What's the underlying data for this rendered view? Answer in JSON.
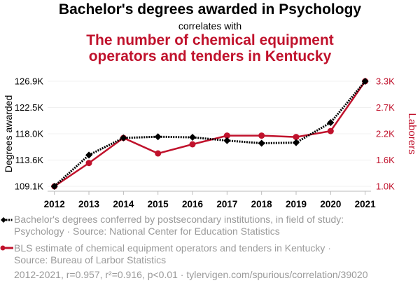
{
  "header": {
    "title": "Bachelor's degrees awarded in Psychology",
    "connector": "correlates with",
    "subtitle": "The number of chemical equipment operators and tenders in Kentucky"
  },
  "chart_data": {
    "type": "line",
    "categories": [
      "2012",
      "2013",
      "2014",
      "2015",
      "2016",
      "2017",
      "2018",
      "2019",
      "2020",
      "2021"
    ],
    "y_left": {
      "label": "Degrees awarded",
      "ticks": [
        "109.1K",
        "113.6K",
        "118.0K",
        "122.5K",
        "126.9K"
      ],
      "range": [
        109100,
        126900
      ]
    },
    "y_right": {
      "label": "Laborers",
      "ticks": [
        "1.0K",
        "1.6K",
        "2.2K",
        "2.7K",
        "3.3K"
      ],
      "range": [
        1000,
        3300
      ]
    },
    "grid": true,
    "series": [
      {
        "name": "Bachelor's degrees conferred by postsecondary institutions, in field of study: Psychology · Source: National Center for Education Statistics",
        "axis": "left",
        "color": "#000000",
        "style": "dotted",
        "marker": "diamond",
        "values": [
          109100,
          114400,
          117300,
          117500,
          117400,
          116850,
          116400,
          116500,
          119900,
          126900
        ]
      },
      {
        "name": "BLS estimate of chemical equipment operators and tenders in Kentucky · Source: Bureau of Larbor Statistics",
        "axis": "right",
        "color": "#c0122c",
        "style": "solid",
        "marker": "circle",
        "values": [
          1000,
          1510,
          2060,
          1720,
          1920,
          2110,
          2110,
          2080,
          2210,
          3300
        ]
      }
    ],
    "legend_position": "bottom"
  },
  "footer": "2012-2021, r=0.957, r²=0.916, p<0.01 · tylervigen.com/spurious/correlation/39020"
}
